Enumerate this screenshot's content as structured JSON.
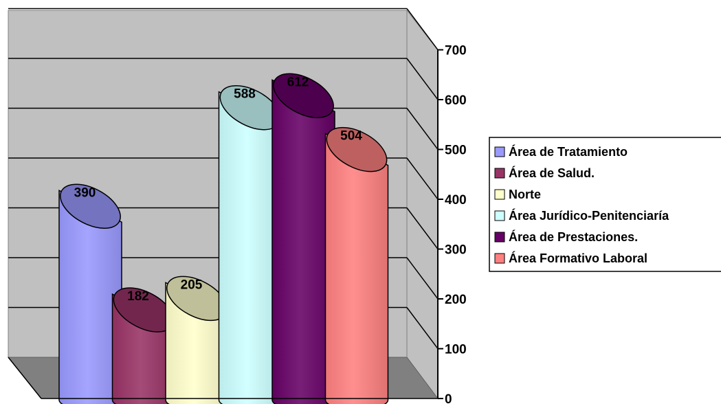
{
  "chart_data": {
    "type": "bar",
    "subtype": "3d-cylinder",
    "title": "",
    "xlabel": "",
    "ylabel": "",
    "ylim": [
      0,
      700
    ],
    "yticks": [
      0,
      100,
      200,
      300,
      400,
      500,
      600,
      700
    ],
    "grid": true,
    "legend_position": "right",
    "series": [
      {
        "name": "Área de Tratamiento",
        "value": 390,
        "color": "#9999ff"
      },
      {
        "name": "Área de Salud.",
        "value": 182,
        "color": "#993366"
      },
      {
        "name": "Norte",
        "value": 205,
        "color": "#ffffcc"
      },
      {
        "name": "Área Jurídico-Penitenciaría",
        "value": 588,
        "color": "#ccffff"
      },
      {
        "name": "Área de Prestaciones.",
        "value": 612,
        "color": "#660066"
      },
      {
        "name": "Área Formativo Laboral",
        "value": 504,
        "color": "#ff8080"
      }
    ],
    "colors": {
      "wall": "#c0c0c0",
      "floor": "#808080"
    }
  }
}
